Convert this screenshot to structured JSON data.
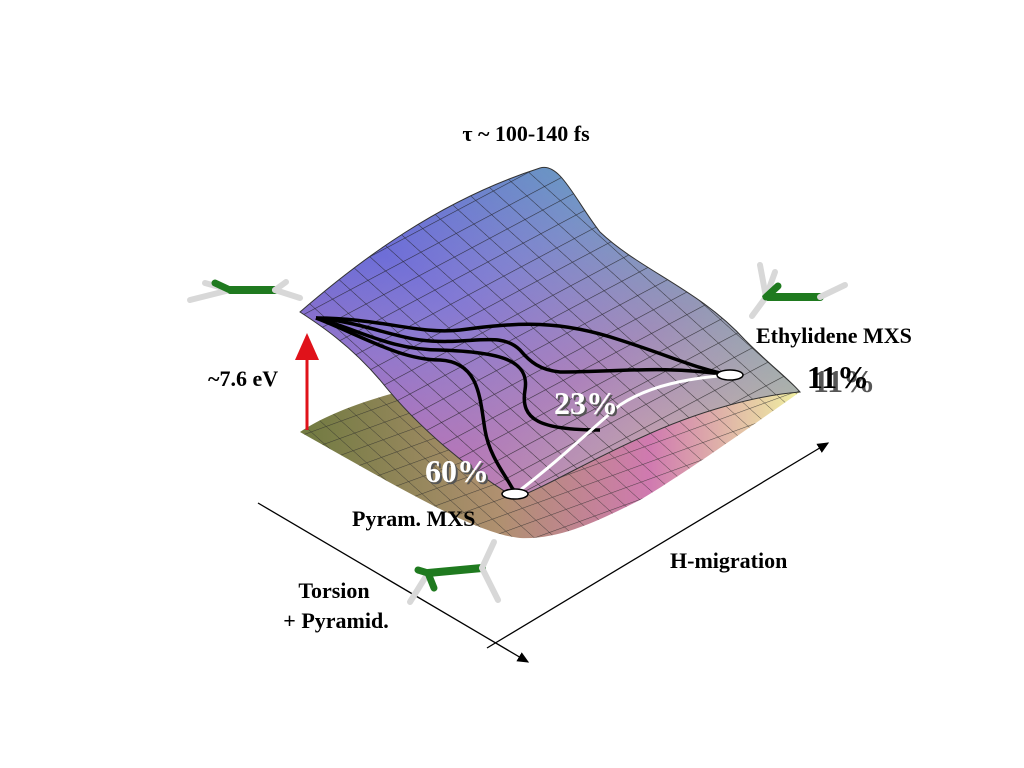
{
  "title": "τ ~ 100-140 fs",
  "labels": {
    "energy_gap": "~7.6 eV",
    "ethylidene": "Ethylidene MXS",
    "pyramidalized": "Pyram. MXS",
    "h_migration": "H-migration",
    "torsion_line1": "Torsion",
    "torsion_line2": "+ Pyramid."
  },
  "yields": {
    "ethylidene": "11%",
    "hydrogen_path": "23%",
    "pyramidalized": "60%"
  },
  "colors": {
    "excitation_arrow": "#e0121a",
    "mesh_lines": "#1a1a1a",
    "trajectories": "#000000",
    "h_path": "#ffffff",
    "molecule_carbon": "#1f7a1f",
    "molecule_hydrogen": "#d8d8d8"
  },
  "icons": [
    "ethylene-planar-molecule-icon",
    "ethylidene-molecule-icon",
    "twisted-pyramidal-molecule-icon"
  ]
}
